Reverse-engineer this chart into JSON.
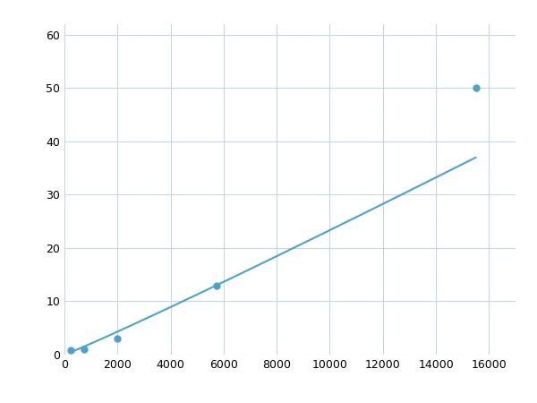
{
  "x_points": [
    250,
    750,
    2000,
    5750,
    15500
  ],
  "y_points": [
    0.8,
    1.0,
    3.0,
    13.0,
    50.0
  ],
  "line_color": "#4ca3c8",
  "marker_color": "#4ca3c8",
  "marker_size": 5,
  "line_width": 1.5,
  "xlim": [
    0,
    17000
  ],
  "ylim": [
    0,
    62
  ],
  "xticks": [
    0,
    2000,
    4000,
    6000,
    8000,
    10000,
    12000,
    14000,
    16000
  ],
  "yticks": [
    0,
    10,
    20,
    30,
    40,
    50,
    60
  ],
  "grid_color": "#c8d4e0",
  "background_color": "#ffffff",
  "fig_width": 6.0,
  "fig_height": 4.5,
  "dpi": 100
}
